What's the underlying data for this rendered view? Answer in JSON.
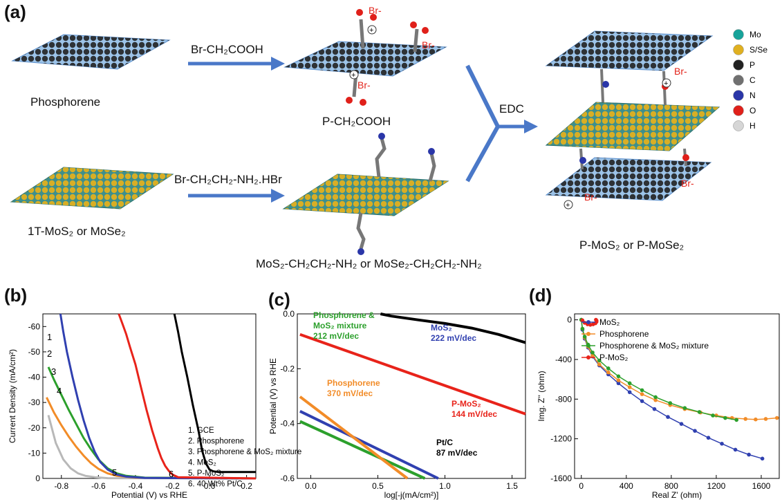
{
  "panel_a": {
    "label": "(a)",
    "phosphorene": "Phosphorene",
    "reagent1": "Br-CH₂COOH",
    "product1": "P-CH₂COOH",
    "mos2": "1T-MoS₂ or MoSe₂",
    "reagent2": "Br-CH₂CH₂-NH₂.HBr",
    "product2": "MoS₂-CH₂CH₂-NH₂ or MoSe₂-CH₂CH₂-NH₂",
    "edc": "EDC",
    "final": "P-MoS₂ or P-MoSe₂",
    "br": "Br-",
    "plus": "+",
    "legend": [
      {
        "label": "Mo",
        "color": "#17a39a"
      },
      {
        "label": "S/Se",
        "color": "#e0b020"
      },
      {
        "label": "P",
        "color": "#222222"
      },
      {
        "label": "C",
        "color": "#707070"
      },
      {
        "label": "N",
        "color": "#2a36a8"
      },
      {
        "label": "O",
        "color": "#e0201a"
      },
      {
        "label": "H",
        "color": "#d6d6d6"
      }
    ]
  },
  "panel_b": {
    "label": "(b)"
  },
  "panel_c": {
    "label": "(c)"
  },
  "panel_d": {
    "label": "(d)"
  },
  "chart_data": [
    {
      "type": "line",
      "ylabel": "Current Density (mA/cm²)",
      "xlabel": "Potential (V) vs RHE",
      "xlim": [
        -0.9,
        0.25
      ],
      "ylim": [
        -65,
        0
      ],
      "xticks": [
        "-0.8",
        "-0.6",
        "-0.4",
        "-0.2",
        "0.0",
        "0.2"
      ],
      "yticks": [
        "0",
        "-10",
        "-20",
        "-30",
        "-40",
        "-50",
        "-60"
      ],
      "series": [
        {
          "name": "1. GCE",
          "num": "1",
          "color": "#b8b8b8",
          "x": [
            -0.87,
            -0.83,
            -0.79,
            -0.75,
            -0.71,
            -0.67,
            -0.62,
            -0.55,
            0.25
          ],
          "y": [
            -25,
            -14,
            -7.5,
            -4,
            -2,
            -1,
            -0.5,
            -0.1,
            0
          ]
        },
        {
          "name": "2. Phosphorene",
          "num": "2",
          "color": "#f28c28",
          "x": [
            -0.88,
            -0.84,
            -0.8,
            -0.76,
            -0.72,
            -0.68,
            -0.64,
            -0.6,
            -0.55,
            -0.5,
            -0.4,
            0.25
          ],
          "y": [
            -32,
            -26,
            -21,
            -16.5,
            -12.5,
            -9,
            -6,
            -3.8,
            -2,
            -1,
            -0.3,
            0
          ]
        },
        {
          "name": "3. Phosphorene & MoS₂ mixture",
          "num": "3",
          "color": "#2ca02c",
          "x": [
            -0.87,
            -0.84,
            -0.8,
            -0.76,
            -0.72,
            -0.68,
            -0.64,
            -0.6,
            -0.55,
            -0.5,
            -0.45,
            -0.35,
            0.25
          ],
          "y": [
            -44,
            -39,
            -33,
            -27,
            -21.5,
            -16,
            -11.5,
            -7.5,
            -4,
            -2,
            -1,
            -0.3,
            0
          ]
        },
        {
          "name": "4. MoS₂",
          "num": "4",
          "color": "#3040b0",
          "x": [
            -0.805,
            -0.79,
            -0.77,
            -0.74,
            -0.71,
            -0.68,
            -0.65,
            -0.62,
            -0.59,
            -0.55,
            -0.5,
            -0.45,
            -0.35,
            0.25
          ],
          "y": [
            -65,
            -58,
            -50,
            -40,
            -31,
            -23,
            -16,
            -10.5,
            -6.5,
            -3.5,
            -1.5,
            -0.7,
            -0.2,
            0
          ]
        },
        {
          "name": "5. P-MoS₂",
          "num": "5",
          "color": "#e8231a",
          "x": [
            -0.49,
            -0.47,
            -0.45,
            -0.43,
            -0.4,
            -0.37,
            -0.34,
            -0.31,
            -0.28,
            -0.26,
            -0.24,
            -0.22,
            -0.2,
            -0.17,
            0.25
          ],
          "y": [
            -65,
            -61,
            -57,
            -52,
            -45,
            -36,
            -27,
            -19,
            -12,
            -8,
            -5,
            -3,
            -1.5,
            -0.5,
            0
          ]
        },
        {
          "name": "6. 40 Wt% Pt/C",
          "num": "6",
          "color": "#000000",
          "x": [
            -0.19,
            -0.17,
            -0.15,
            -0.12,
            -0.09,
            -0.06,
            -0.04,
            -0.02,
            0.0,
            0.02,
            0.05,
            0.1,
            0.25
          ],
          "y": [
            -65,
            -58,
            -50,
            -40,
            -29,
            -19,
            -11,
            -6,
            -3.5,
            -2.8,
            -2.5,
            -2.5,
            -2.5
          ]
        }
      ]
    },
    {
      "type": "line",
      "ylabel": "Potential (V) vs RHE",
      "xlabel": "log[-j(mA/cm²)]",
      "xlim": [
        -0.1,
        1.6
      ],
      "ylim": [
        0.0,
        -0.6
      ],
      "xticks": [
        "0.0",
        "0.5",
        "1.0",
        "1.5"
      ],
      "yticks": [
        "0.0",
        "-0.2",
        "-0.4",
        "-0.6"
      ],
      "series": [
        {
          "name": "Phosphorene & MoS₂ mixture",
          "label1": "Phosphorene &",
          "label2": "MoS₂ mixture",
          "slope": "212 mV/dec",
          "color": "#2ca02c",
          "x": [
            -0.08,
            0.85
          ],
          "y": [
            -0.392,
            -0.6
          ]
        },
        {
          "name": "MoS₂",
          "label1": "MoS₂",
          "slope": "222 mV/dec",
          "color": "#3040b0",
          "x": [
            -0.08,
            0.95
          ],
          "y": [
            -0.355,
            -0.6
          ]
        },
        {
          "name": "Phosphorene",
          "label1": "Phosphorene",
          "slope": "370 mV/dec",
          "color": "#f28c28",
          "x": [
            -0.08,
            0.72
          ],
          "y": [
            -0.302,
            -0.6
          ]
        },
        {
          "name": "P-MoS₂",
          "label1": "P-MoS₂",
          "slope": "144 mV/dec",
          "color": "#e8231a",
          "x": [
            -0.08,
            1.6
          ],
          "y": [
            -0.075,
            -0.365
          ]
        },
        {
          "name": "Pt/C",
          "label1": "Pt/C",
          "slope": "87 mV/dec",
          "color": "#000000",
          "x": [
            0.52,
            0.6,
            0.8,
            1.0,
            1.2,
            1.4,
            1.6
          ],
          "y": [
            0.0,
            -0.008,
            -0.022,
            -0.035,
            -0.052,
            -0.075,
            -0.105
          ]
        }
      ]
    },
    {
      "type": "scatter",
      "ylabel": "Img. Z'' (ohm)",
      "xlabel": "Real Z' (ohm)",
      "xlim": [
        -60,
        1760
      ],
      "ylim": [
        60,
        -1600
      ],
      "xticks": [
        "0",
        "400",
        "800",
        "1200",
        "1600"
      ],
      "yticks": [
        "0",
        "-400",
        "-800",
        "-1200",
        "-1600"
      ],
      "legend_position": "top-left",
      "series": [
        {
          "name": "MoS₂",
          "color": "#3040b0",
          "x": [
            0,
            10,
            30,
            60,
            100,
            160,
            240,
            330,
            430,
            540,
            650,
            770,
            890,
            1010,
            1130,
            1250,
            1370,
            1490,
            1610
          ],
          "y": [
            0,
            -100,
            -190,
            -280,
            -370,
            -460,
            -550,
            -640,
            -730,
            -820,
            -900,
            -980,
            -1050,
            -1120,
            -1190,
            -1250,
            -1310,
            -1360,
            -1400
          ]
        },
        {
          "name": "Phosphorene",
          "color": "#f28c28",
          "x": [
            0,
            10,
            30,
            60,
            100,
            160,
            240,
            330,
            430,
            540,
            660,
            790,
            920,
            1060,
            1200,
            1340,
            1460,
            1550,
            1640,
            1740
          ],
          "y": [
            0,
            -90,
            -180,
            -270,
            -360,
            -450,
            -530,
            -610,
            -680,
            -750,
            -810,
            -860,
            -900,
            -935,
            -965,
            -990,
            -1000,
            -1005,
            -1000,
            -990
          ]
        },
        {
          "name": "Phosphorene & MoS₂ mixture",
          "color": "#2ca02c",
          "x": [
            0,
            10,
            30,
            60,
            100,
            160,
            240,
            330,
            430,
            540,
            660,
            790,
            920,
            1050,
            1170,
            1280,
            1380
          ],
          "y": [
            0,
            -90,
            -170,
            -250,
            -330,
            -410,
            -490,
            -570,
            -640,
            -710,
            -780,
            -840,
            -890,
            -930,
            -965,
            -990,
            -1010
          ]
        },
        {
          "name": "P-MoS₂",
          "color": "#e8231a",
          "x": [
            10,
            30,
            55,
            80,
            105,
            125,
            135,
            135,
            130
          ],
          "y": [
            -5,
            -30,
            -45,
            -50,
            -45,
            -35,
            -20,
            -8,
            0
          ]
        }
      ]
    }
  ]
}
